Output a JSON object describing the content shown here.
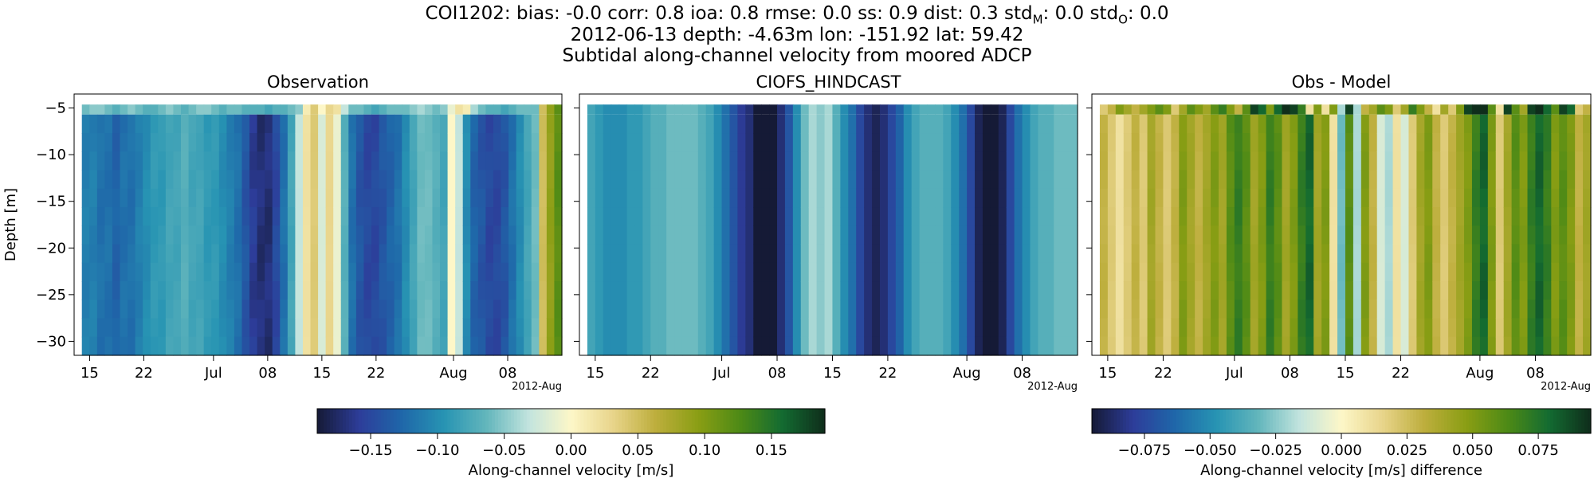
{
  "header": {
    "line1": "COI1202: bias: -0.0  corr: 0.8  ioa: 0.8  rmse: 0.0  ss: 0.9  dist: 0.3  std",
    "line1_sub_m": "M",
    "line1_mid": ": 0.0  std",
    "line1_sub_o": "O",
    "line1_end": ": 0.0",
    "line2": "2012-06-13 depth: -4.63m lon: -151.92 lat: 59.42",
    "line3": "Subtidal along-channel velocity from moored ADCP"
  },
  "colors": {
    "colormap_delta": [
      "#151a36",
      "#2d3d9a",
      "#1f67a9",
      "#2794b3",
      "#63b6bc",
      "#c2e4de",
      "#fdf7c8",
      "#e8d48a",
      "#bdae3c",
      "#8a9e14",
      "#4d8a16",
      "#136b31",
      "#0f2d1b"
    ]
  },
  "chart_data": [
    {
      "type": "heatmap",
      "title": "Observation",
      "ylabel": "Depth [m]",
      "ylim": [
        -31.5,
        -3.5
      ],
      "yticks": [
        -5,
        -10,
        -15,
        -20,
        -25,
        -30
      ],
      "xticks": [
        "15",
        "22",
        "Jul",
        "08",
        "15",
        "22",
        "Aug",
        "08"
      ],
      "xtick_dates": [
        "2012-06-15",
        "2012-06-22",
        "2012-07-01",
        "2012-07-08",
        "2012-07-15",
        "2012-07-22",
        "2012-08-01",
        "2012-08-08"
      ],
      "x_offset_label": "2012-Aug",
      "xlim": [
        "2012-06-13",
        "2012-08-15"
      ],
      "date_start": "2012-06-14",
      "clim": [
        -0.19,
        0.19
      ],
      "rows": 14,
      "surface_row_ends": "2012-08-12",
      "surface_values": [
        -0.06,
        -0.05,
        -0.05,
        -0.06,
        -0.07,
        -0.06,
        -0.05,
        -0.06,
        -0.07,
        -0.07,
        -0.06,
        -0.05,
        -0.06,
        -0.07,
        -0.06,
        -0.05,
        -0.05,
        -0.06,
        -0.07,
        -0.06,
        -0.06,
        -0.07,
        -0.07,
        -0.07,
        -0.08,
        -0.07,
        -0.07,
        -0.06,
        -0.05,
        0.01,
        0.04,
        0.0,
        0.03,
        0.02,
        -0.03,
        -0.06,
        -0.06,
        -0.07,
        -0.08,
        -0.07,
        -0.06,
        -0.06,
        -0.06,
        -0.05,
        -0.04,
        -0.05,
        -0.06,
        -0.05,
        -0.01,
        0.02,
        0.01,
        -0.04,
        -0.06,
        -0.07,
        -0.07,
        -0.08,
        -0.07,
        -0.06,
        -0.06,
        -0.06,
        0.04,
        0.08,
        0.13
      ],
      "values": [
        -0.11,
        -0.11,
        -0.12,
        -0.12,
        -0.13,
        -0.12,
        -0.12,
        -0.11,
        -0.1,
        -0.09,
        -0.09,
        -0.08,
        -0.08,
        -0.07,
        -0.08,
        -0.08,
        -0.09,
        -0.09,
        -0.1,
        -0.11,
        -0.12,
        -0.14,
        -0.16,
        -0.17,
        -0.17,
        -0.15,
        -0.12,
        -0.08,
        -0.03,
        0.02,
        0.04,
        -0.02,
        0.03,
        -0.01,
        -0.07,
        -0.12,
        -0.14,
        -0.15,
        -0.15,
        -0.14,
        -0.13,
        -0.12,
        -0.1,
        -0.08,
        -0.06,
        -0.06,
        -0.07,
        -0.08,
        0.0,
        -0.03,
        -0.1,
        -0.13,
        -0.14,
        -0.15,
        -0.15,
        -0.14,
        -0.12,
        -0.1,
        -0.08,
        -0.06,
        0.05,
        0.09,
        0.12
      ]
    },
    {
      "type": "heatmap",
      "title": "CIOFS_HINDCAST",
      "xticks": [
        "15",
        "22",
        "Jul",
        "08",
        "15",
        "22",
        "Aug",
        "08"
      ],
      "xtick_dates": [
        "2012-06-15",
        "2012-06-22",
        "2012-07-01",
        "2012-07-08",
        "2012-07-15",
        "2012-07-22",
        "2012-08-01",
        "2012-08-08"
      ],
      "x_offset_label": "2012-Aug",
      "values": [
        -0.08,
        -0.09,
        -0.1,
        -0.1,
        -0.1,
        -0.09,
        -0.09,
        -0.08,
        -0.07,
        -0.07,
        -0.06,
        -0.06,
        -0.06,
        -0.06,
        -0.07,
        -0.08,
        -0.1,
        -0.12,
        -0.14,
        -0.16,
        -0.17,
        -0.19,
        -0.2,
        -0.19,
        -0.17,
        -0.14,
        -0.1,
        -0.06,
        -0.04,
        -0.05,
        -0.04,
        -0.07,
        -0.1,
        -0.12,
        -0.15,
        -0.17,
        -0.18,
        -0.17,
        -0.15,
        -0.13,
        -0.1,
        -0.08,
        -0.07,
        -0.07,
        -0.07,
        -0.08,
        -0.1,
        -0.12,
        -0.15,
        -0.18,
        -0.2,
        -0.2,
        -0.18,
        -0.15,
        -0.12,
        -0.1,
        -0.08,
        -0.07,
        -0.07,
        -0.06,
        -0.06,
        -0.06
      ]
    },
    {
      "type": "heatmap",
      "title": "Obs - Model",
      "clim": [
        -0.095,
        0.095
      ],
      "surface_values": [
        0.02,
        0.03,
        0.05,
        0.04,
        0.03,
        0.04,
        0.05,
        0.06,
        0.05,
        0.02,
        0.04,
        0.06,
        0.05,
        0.04,
        0.06,
        0.07,
        0.05,
        0.03,
        0.06,
        0.09,
        0.08,
        0.05,
        0.08,
        0.1,
        0.09,
        0.07,
        0.01,
        0.05,
        0.01,
        0.05,
        -0.02,
        0.09,
        -0.02,
        0.03,
        0.04,
        0.06,
        0.05,
        0.02,
        0.04,
        0.07,
        0.05,
        0.03,
        0.01,
        0.04,
        0.02,
        0.05,
        0.09,
        0.1,
        0.1,
        0.06,
        0.01,
        0.09,
        0.06,
        0.04,
        0.09,
        0.1,
        0.08,
        0.06,
        0.09,
        0.08,
        0.02,
        0.03
      ],
      "values": [
        0.03,
        0.02,
        0.01,
        0.02,
        0.03,
        0.02,
        0.04,
        0.03,
        0.02,
        0.03,
        0.05,
        0.04,
        0.03,
        0.04,
        0.05,
        0.04,
        0.06,
        0.07,
        0.06,
        0.04,
        0.05,
        0.07,
        0.06,
        0.04,
        0.05,
        0.07,
        0.08,
        0.04,
        0.05,
        0.01,
        -0.03,
        0.06,
        -0.02,
        0.05,
        0.03,
        -0.01,
        -0.02,
        0.01,
        -0.01,
        0.02,
        0.04,
        0.05,
        0.03,
        0.02,
        0.03,
        0.04,
        0.05,
        0.07,
        0.08,
        0.05,
        0.02,
        0.04,
        0.06,
        0.05,
        0.07,
        0.08,
        0.07,
        0.05,
        0.06,
        0.05,
        0.03,
        0.04
      ]
    }
  ],
  "colorbars": [
    {
      "label": "Along-channel velocity [m/s]",
      "clim": [
        -0.19,
        0.19
      ],
      "ticks": [
        -0.15,
        -0.1,
        -0.05,
        0.0,
        0.05,
        0.1,
        0.15
      ],
      "tick_labels": [
        "−0.15",
        "−0.10",
        "−0.05",
        "0.00",
        "0.05",
        "0.10",
        "0.15"
      ]
    },
    {
      "label": "Along-channel velocity [m/s] difference",
      "clim": [
        -0.095,
        0.095
      ],
      "ticks": [
        -0.075,
        -0.05,
        -0.025,
        0.0,
        0.025,
        0.05,
        0.075
      ],
      "tick_labels": [
        "−0.075",
        "−0.050",
        "−0.025",
        "0.000",
        "0.025",
        "0.050",
        "0.075"
      ]
    }
  ]
}
